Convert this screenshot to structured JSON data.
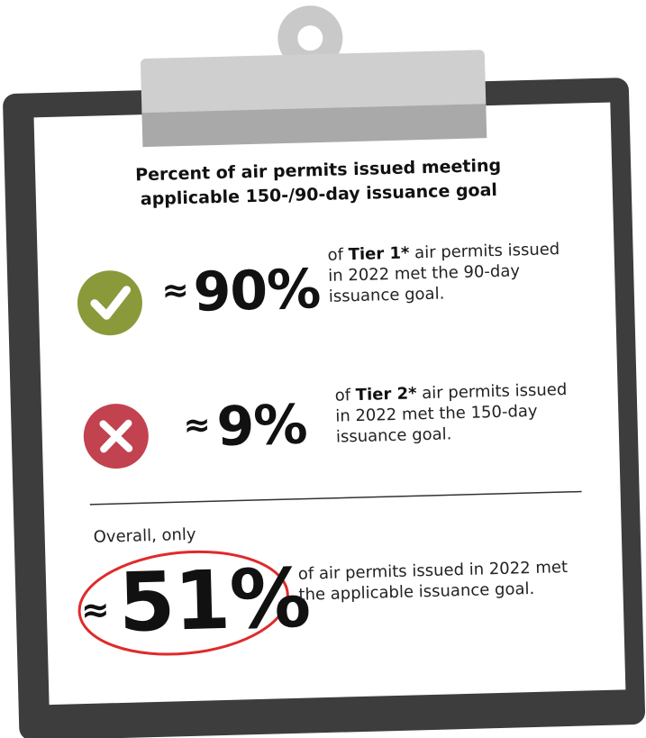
{
  "title": "Percent of air permits issued meeting applicable 150-/90-day issuance goal",
  "stats": [
    {
      "symbol": "≈",
      "value": "90%",
      "text_before": "of ",
      "text_bold": "Tier 1*",
      "text_after": " air permits issued in 2022 met the 90-day issuance goal."
    },
    {
      "symbol": "≈",
      "value": "9%",
      "text_before": "of ",
      "text_bold": "Tier 2*",
      "text_after": " air permits issued in 2022 met the 150-day issuance goal."
    }
  ],
  "overall": {
    "intro": "Overall, only",
    "symbol": "≈",
    "value": "51%",
    "text": "of air permits issued in 2022 met the applicable issuance goal."
  }
}
